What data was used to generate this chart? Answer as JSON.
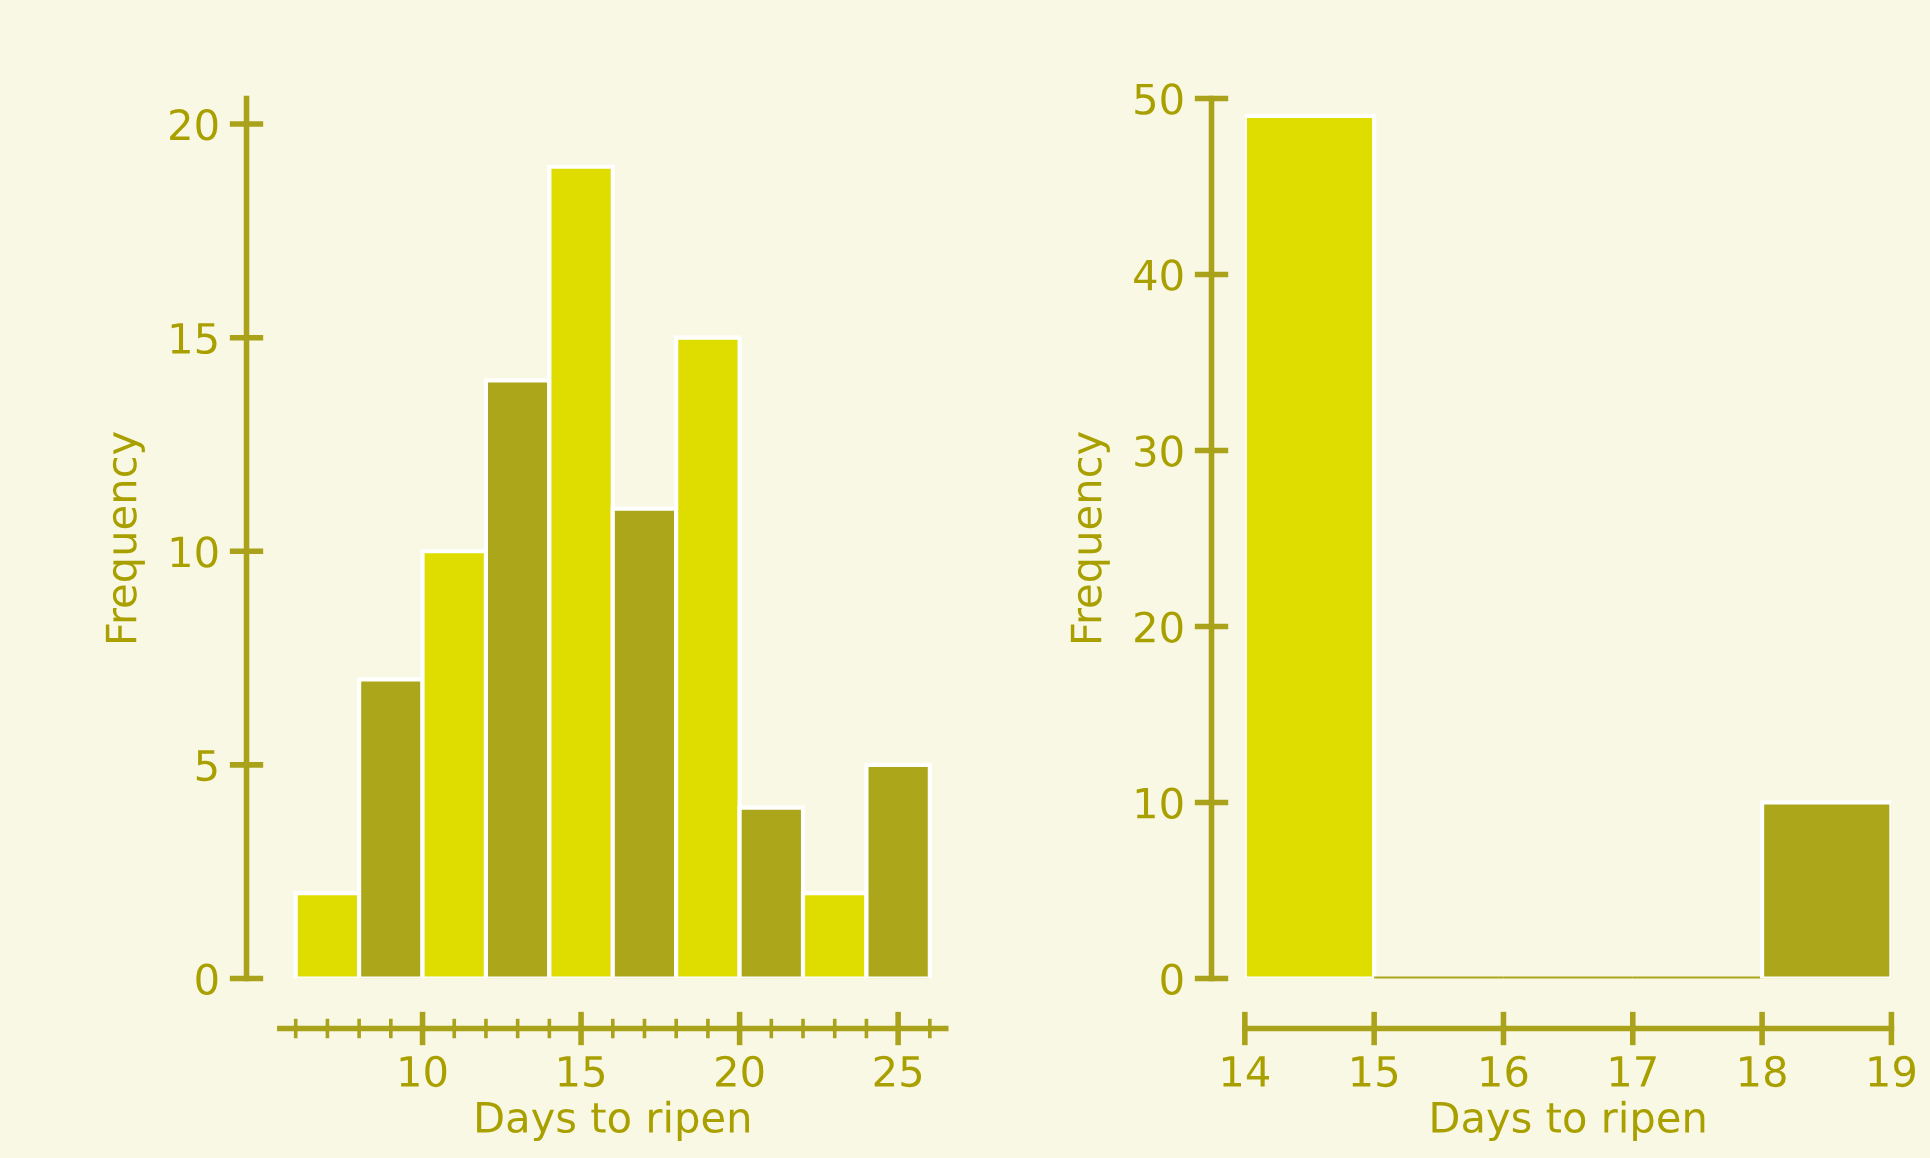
{
  "chart_data": [
    {
      "type": "histogram",
      "xlabel": "Days to ripen",
      "ylabel": "Frequency",
      "bins": [
        6,
        8,
        10,
        12,
        14,
        16,
        18,
        20,
        22,
        24,
        26
      ],
      "values": [
        2,
        7,
        10,
        14,
        19,
        11,
        15,
        4,
        2,
        5
      ],
      "colors": [
        "#dfdc00",
        "#aca71a",
        "#dfdc00",
        "#aca71a",
        "#dfdc00",
        "#aca71a",
        "#dfdc00",
        "#aca71a",
        "#dfdc00",
        "#aca71a"
      ],
      "xlim": [
        5.5,
        26.5
      ],
      "ylim": [
        0,
        20.6
      ],
      "xticks": [
        10,
        15,
        20,
        25
      ],
      "yticks": [
        0,
        5,
        10,
        15,
        20
      ],
      "grid": false,
      "legend": false
    },
    {
      "type": "histogram",
      "xlabel": "Days to ripen",
      "ylabel": "Frequency",
      "bins": [
        14,
        15,
        16,
        17,
        18,
        19
      ],
      "values": [
        49,
        0,
        0,
        0,
        10
      ],
      "colors": [
        "#dfdc00",
        "#aca71a",
        "#aca71a",
        "#aca71a",
        "#aca71a"
      ],
      "xlim": [
        14,
        19
      ],
      "ylim": [
        0,
        50
      ],
      "xticks": [
        14,
        15,
        16,
        17,
        18,
        19
      ],
      "yticks": [
        0,
        10,
        20,
        30,
        40,
        50
      ],
      "grid": false,
      "legend": false
    }
  ]
}
